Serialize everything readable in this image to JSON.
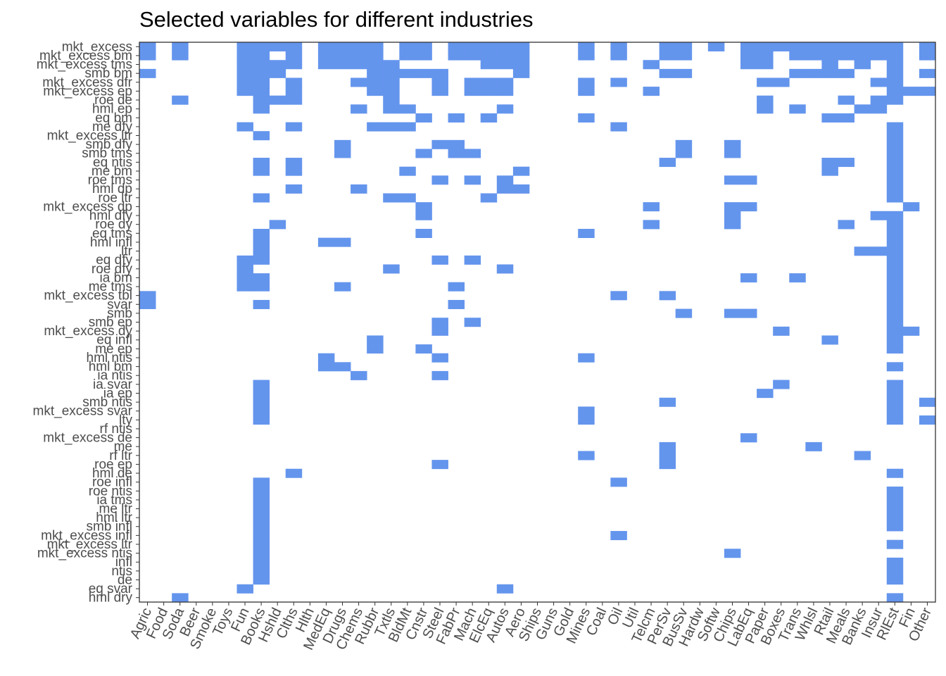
{
  "chart_data": {
    "type": "heatmap",
    "title": "Selected variables for different industries",
    "xlabel": "",
    "ylabel": "",
    "fill_color": "#6495ED",
    "background": "#ffffff",
    "grid": false,
    "legend": "none",
    "industries": [
      "Agric",
      "Food",
      "Soda",
      "Beer",
      "Smoke",
      "Toys",
      "Fun",
      "Books",
      "Hshld",
      "Clths",
      "Hlth",
      "MedEq",
      "Drugs",
      "Chems",
      "Rubbr",
      "Txtls",
      "BldMt",
      "Cnstr",
      "Steel",
      "FabPr",
      "Mach",
      "ElcEq",
      "Autos",
      "Aero",
      "Ships",
      "Guns",
      "Gold",
      "Mines",
      "Coal",
      "Oil",
      "Util",
      "Telcm",
      "PerSv",
      "BusSv",
      "Hardw",
      "Softw",
      "Chips",
      "LabEq",
      "Paper",
      "Boxes",
      "Trans",
      "Whlsl",
      "Rtail",
      "Meals",
      "Banks",
      "Insur",
      "RlEst",
      "Fin",
      "Other"
    ],
    "variables": [
      "mkt_excess",
      "mkt_excess bm",
      "mkt_excess tms",
      "smb bm",
      "mkt_excess dfr",
      "mkt_excess ep",
      "roe de",
      "hml ep",
      "eq bm",
      "me dfy",
      "mkt_excess ltr",
      "smb dfy",
      "smb tms",
      "eq ntis",
      "me bm",
      "roe tms",
      "hml dp",
      "roe ltr",
      "mkt_excess dp",
      "hml dfy",
      "roe dy",
      "eq tms",
      "hml infl",
      "ltr",
      "eq dfy",
      "roe dfy",
      "ia bm",
      "me tms",
      "mkt_excess tbl",
      "svar",
      "smb",
      "smb ep",
      "mkt_excess dy",
      "eq infl",
      "me ep",
      "hml ntis",
      "hml bm",
      "ia ntis",
      "ia svar",
      "ia ep",
      "smb ntis",
      "mkt_excess svar",
      "lty",
      "rf ntis",
      "mkt_excess de",
      "me",
      "rf ltr",
      "roe ep",
      "hml de",
      "roe infl",
      "roe ntis",
      "ia tms",
      "me ltr",
      "hml ltr",
      "smb infl",
      "mkt_excess infl",
      "mkt_excess ltr",
      "mkt_excess ntis",
      "infl",
      "ntis",
      "de",
      "eq svar",
      "hml dry"
    ],
    "selected": {
      "mkt_excess": [
        "Agric",
        "Soda",
        "Fun",
        "Books",
        "Hshld",
        "Clths",
        "MedEq",
        "Drugs",
        "Chems",
        "Rubbr",
        "BldMt",
        "Cnstr",
        "FabPr",
        "Mach",
        "ElcEq",
        "Autos",
        "Aero",
        "Mines",
        "Oil",
        "PerSv",
        "BusSv",
        "Softw",
        "LabEq",
        "Paper",
        "Boxes",
        "Trans",
        "Whlsl",
        "Rtail",
        "Meals",
        "Banks",
        "Insur",
        "RlEst",
        "Other"
      ],
      "mkt_excess bm": [
        "Agric",
        "Soda",
        "Fun",
        "Books",
        "Clths",
        "MedEq",
        "Drugs",
        "Chems",
        "Rubbr",
        "BldMt",
        "Cnstr",
        "FabPr",
        "Mach",
        "ElcEq",
        "Autos",
        "Aero",
        "Mines",
        "Oil",
        "PerSv",
        "BusSv",
        "LabEq",
        "Paper",
        "Trans",
        "Whlsl",
        "Rtail",
        "Meals",
        "Banks",
        "Insur",
        "RlEst",
        "Other"
      ],
      "mkt_excess tms": [
        "Fun",
        "Books",
        "Hshld",
        "Clths",
        "MedEq",
        "Drugs",
        "Chems",
        "Rubbr",
        "Txtls",
        "ElcEq",
        "Autos",
        "Aero",
        "Telcm",
        "LabEq",
        "Paper",
        "Rtail",
        "Banks",
        "RlEst"
      ],
      "smb bm": [
        "Agric",
        "Fun",
        "Books",
        "Hshld",
        "Rubbr",
        "Txtls",
        "BldMt",
        "Cnstr",
        "Steel",
        "Aero",
        "PerSv",
        "BusSv",
        "Trans",
        "Whlsl",
        "Rtail",
        "Meals",
        "RlEst",
        "Other"
      ],
      "mkt_excess dfr": [
        "Fun",
        "Books",
        "Clths",
        "Chems",
        "Rubbr",
        "Txtls",
        "Steel",
        "Mach",
        "ElcEq",
        "Autos",
        "Mines",
        "Oil",
        "Paper",
        "Boxes",
        "Insur",
        "RlEst"
      ],
      "mkt_excess ep": [
        "Fun",
        "Books",
        "Clths",
        "Rubbr",
        "Txtls",
        "Steel",
        "Mach",
        "ElcEq",
        "Autos",
        "Mines",
        "Telcm",
        "RlEst",
        "Fin",
        "Other"
      ],
      "roe de": [
        "Soda",
        "Books",
        "Hshld",
        "Clths",
        "Txtls",
        "Paper",
        "Meals",
        "Insur",
        "RlEst"
      ],
      "hml ep": [
        "Books",
        "Chems",
        "Txtls",
        "BldMt",
        "Autos",
        "Paper",
        "Trans",
        "Banks",
        "Insur"
      ],
      "eq bm": [
        "Cnstr",
        "FabPr",
        "ElcEq",
        "Mines",
        "Rtail",
        "Meals"
      ],
      "me dfy": [
        "Fun",
        "Clths",
        "Rubbr",
        "Txtls",
        "BldMt",
        "Oil",
        "RlEst"
      ],
      "mkt_excess ltr": [
        "Books",
        "RlEst"
      ],
      "smb dfy": [
        "Drugs",
        "Steel",
        "FabPr",
        "BusSv",
        "Chips",
        "RlEst"
      ],
      "smb tms": [
        "Drugs",
        "Cnstr",
        "FabPr",
        "Mach",
        "BusSv",
        "Chips",
        "RlEst"
      ],
      "eq ntis": [
        "Books",
        "Clths",
        "PerSv",
        "Rtail",
        "Meals",
        "RlEst"
      ],
      "me bm": [
        "Books",
        "Clths",
        "BldMt",
        "Aero",
        "Rtail",
        "RlEst"
      ],
      "roe tms": [
        "Steel",
        "Mach",
        "Autos",
        "Chips",
        "LabEq",
        "RlEst"
      ],
      "hml dp": [
        "Clths",
        "Chems",
        "Autos",
        "Aero",
        "RlEst"
      ],
      "roe ltr": [
        "Books",
        "Txtls",
        "BldMt",
        "ElcEq",
        "RlEst"
      ],
      "mkt_excess dp": [
        "Cnstr",
        "Telcm",
        "Chips",
        "LabEq",
        "Fin"
      ],
      "hml dfy": [
        "Cnstr",
        "Chips",
        "Insur",
        "RlEst"
      ],
      "roe dy": [
        "Hshld",
        "Telcm",
        "Chips",
        "Meals",
        "RlEst"
      ],
      "eq tms": [
        "Books",
        "Cnstr",
        "Mines",
        "RlEst"
      ],
      "hml infl": [
        "Books",
        "MedEq",
        "Drugs",
        "RlEst"
      ],
      "ltr": [
        "Books",
        "Banks",
        "Insur",
        "RlEst"
      ],
      "eq dfy": [
        "Fun",
        "Books",
        "Steel",
        "Mach",
        "RlEst"
      ],
      "roe dfy": [
        "Fun",
        "Txtls",
        "Autos",
        "RlEst"
      ],
      "ia bm": [
        "Fun",
        "Books",
        "LabEq",
        "Trans",
        "RlEst"
      ],
      "me tms": [
        "Fun",
        "Books",
        "Drugs",
        "FabPr",
        "RlEst"
      ],
      "mkt_excess tbl": [
        "Agric",
        "Oil",
        "PerSv",
        "RlEst"
      ],
      "svar": [
        "Agric",
        "Books",
        "FabPr",
        "RlEst"
      ],
      "smb": [
        "BusSv",
        "Chips",
        "LabEq",
        "RlEst"
      ],
      "smb ep": [
        "Steel",
        "Mach",
        "RlEst"
      ],
      "mkt_excess dy": [
        "Steel",
        "Boxes",
        "RlEst",
        "Fin"
      ],
      "eq infl": [
        "Rubbr",
        "Rtail",
        "RlEst"
      ],
      "me ep": [
        "Rubbr",
        "Cnstr",
        "RlEst"
      ],
      "hml ntis": [
        "MedEq",
        "Steel",
        "Mines"
      ],
      "hml bm": [
        "MedEq",
        "Drugs",
        "RlEst"
      ],
      "ia ntis": [
        "Chems",
        "Steel"
      ],
      "ia svar": [
        "Books",
        "Boxes",
        "RlEst"
      ],
      "ia ep": [
        "Books",
        "Paper",
        "RlEst"
      ],
      "smb ntis": [
        "Books",
        "PerSv",
        "RlEst",
        "Other"
      ],
      "mkt_excess svar": [
        "Books",
        "Mines",
        "RlEst"
      ],
      "lty": [
        "Books",
        "Mines",
        "RlEst",
        "Other"
      ],
      "rf ntis": [],
      "mkt_excess de": [
        "LabEq"
      ],
      "me": [
        "PerSv",
        "Whlsl"
      ],
      "rf ltr": [
        "PerSv",
        "Mines",
        "Banks"
      ],
      "roe ep": [
        "Steel",
        "PerSv"
      ],
      "hml de": [
        "Clths",
        "RlEst"
      ],
      "roe infl": [
        "Books",
        "Oil"
      ],
      "roe ntis": [
        "Books",
        "RlEst"
      ],
      "ia tms": [
        "Books",
        "RlEst"
      ],
      "me ltr": [
        "Books",
        "RlEst"
      ],
      "hml ltr": [
        "Books",
        "RlEst"
      ],
      "smb infl": [
        "Books",
        "RlEst"
      ],
      "mkt_excess infl": [
        "Books",
        "Oil"
      ],
      "mkt_excess ntis": [
        "Books",
        "Chips"
      ],
      "infl": [
        "Books",
        "RlEst"
      ],
      "ntis": [
        "Books",
        "RlEst"
      ],
      "de": [
        "Books",
        "RlEst"
      ],
      "eq svar": [
        "Fun",
        "Autos"
      ],
      "hml dry": [
        "Soda",
        "RlEst"
      ]
    }
  }
}
